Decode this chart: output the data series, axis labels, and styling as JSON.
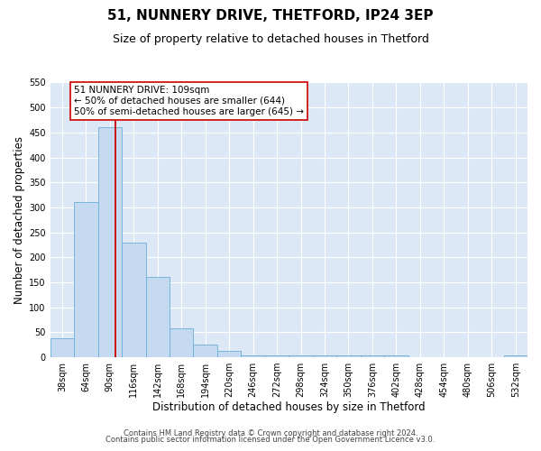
{
  "title": "51, NUNNERY DRIVE, THETFORD, IP24 3EP",
  "subtitle": "Size of property relative to detached houses in Thetford",
  "xlabel": "Distribution of detached houses by size in Thetford",
  "ylabel": "Number of detached properties",
  "bin_edges": [
    38,
    64,
    90,
    116,
    142,
    168,
    194,
    220,
    246,
    272,
    298,
    324,
    350,
    376,
    402,
    428,
    454,
    480,
    506,
    532,
    558
  ],
  "bar_heights": [
    38,
    310,
    460,
    230,
    160,
    57,
    25,
    12,
    3,
    3,
    3,
    3,
    3,
    3,
    3,
    0,
    0,
    0,
    0,
    3
  ],
  "bar_color": "#c5d9f0",
  "bar_edgecolor": "#6baed6",
  "red_line_x": 109,
  "ylim": [
    0,
    550
  ],
  "yticks": [
    0,
    50,
    100,
    150,
    200,
    250,
    300,
    350,
    400,
    450,
    500,
    550
  ],
  "annotation_title": "51 NUNNERY DRIVE: 109sqm",
  "annotation_line1": "← 50% of detached houses are smaller (644)",
  "annotation_line2": "50% of semi-detached houses are larger (645) →",
  "annotation_box_edgecolor": "#cc0000",
  "red_line_color": "#cc0000",
  "footnote1": "Contains HM Land Registry data © Crown copyright and database right 2024.",
  "footnote2": "Contains public sector information licensed under the Open Government Licence v3.0.",
  "plot_bg_color": "#dce8f5",
  "fig_bg_color": "#ffffff",
  "grid_color": "#ffffff",
  "title_fontsize": 11,
  "subtitle_fontsize": 9,
  "xlabel_fontsize": 8.5,
  "ylabel_fontsize": 8.5,
  "tick_fontsize": 7,
  "annotation_fontsize": 7.5,
  "footnote_fontsize": 6
}
